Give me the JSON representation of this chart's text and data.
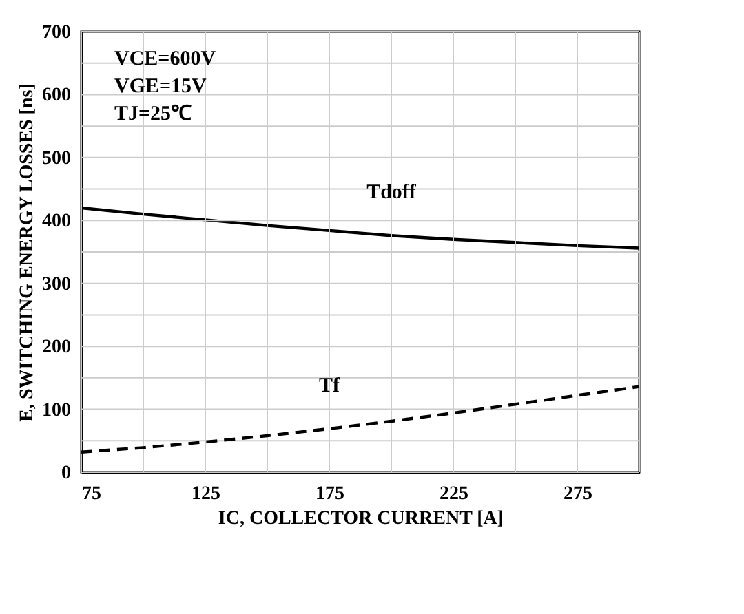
{
  "chart_data": {
    "type": "line",
    "xlabel": "IC, COLLECTOR CURRENT [A]",
    "ylabel": "E, SWITCHING ENERGY LOSSES [ns]",
    "x": [
      75,
      100,
      125,
      150,
      175,
      200,
      225,
      250,
      275,
      300
    ],
    "series": [
      {
        "name": "Tdoff",
        "color": "#000000",
        "line_style": "solid",
        "values": [
          420,
          410,
          401,
          392,
          384,
          376,
          370,
          365,
          360,
          356
        ]
      },
      {
        "name": "Tf",
        "color": "#000000",
        "line_style": "dashed",
        "values": [
          32,
          39,
          48,
          58,
          69,
          81,
          94,
          108,
          122,
          136
        ]
      }
    ],
    "annotations": [
      "VCE=600V",
      "VGE=15V",
      "TJ=25℃"
    ],
    "xlim": [
      75,
      300
    ],
    "ylim": [
      0,
      700
    ],
    "xticks": [
      75,
      {
        "value": 100,
        "label": null
      },
      125,
      {
        "value": 150,
        "label": null
      },
      175,
      {
        "value": 200,
        "label": null
      },
      225,
      {
        "value": 250,
        "label": null
      },
      275,
      {
        "value": 300,
        "label": null
      }
    ],
    "yticks": [
      0,
      {
        "value": 50,
        "label": null
      },
      100,
      {
        "value": 150,
        "label": null
      },
      200,
      {
        "value": 250,
        "label": null
      },
      300,
      {
        "value": 350,
        "label": null
      },
      400,
      {
        "value": 450,
        "label": null
      },
      500,
      {
        "value": 550,
        "label": null
      },
      600,
      {
        "value": 650,
        "label": null
      },
      700
    ],
    "grid": true
  }
}
